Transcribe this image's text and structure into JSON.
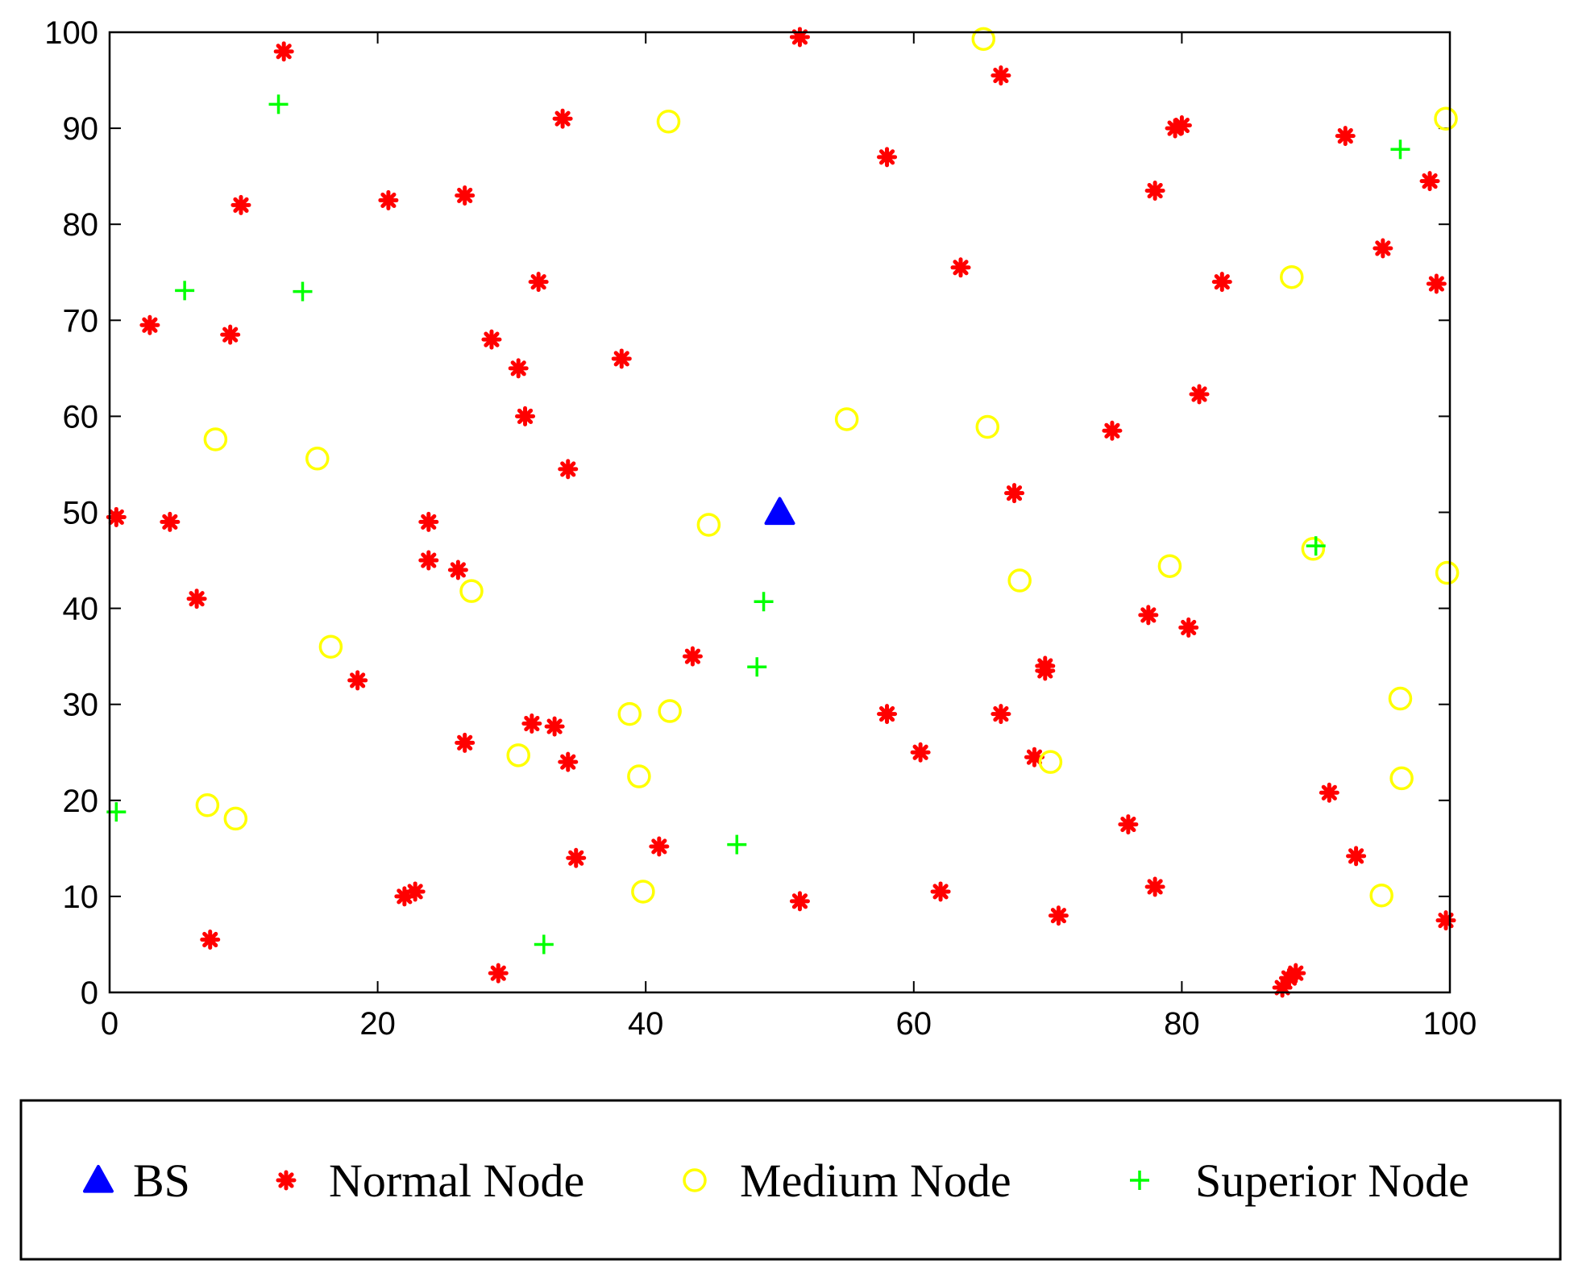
{
  "chart_data": {
    "type": "scatter",
    "title": "",
    "xlabel": "",
    "ylabel": "",
    "xlim": [
      0,
      100
    ],
    "ylim": [
      0,
      100
    ],
    "xticks": [
      0,
      20,
      40,
      60,
      80,
      100
    ],
    "yticks": [
      0,
      10,
      20,
      30,
      40,
      50,
      60,
      70,
      80,
      90,
      100
    ],
    "grid": false,
    "legend_position": "bottom",
    "series": [
      {
        "name": "BS",
        "marker": "triangle",
        "color": "#0000ff",
        "points": [
          [
            50,
            50
          ]
        ]
      },
      {
        "name": "Normal Node",
        "marker": "asterisk",
        "color": "#ff0000",
        "points": [
          [
            0.5,
            49.5
          ],
          [
            3,
            69.5
          ],
          [
            4.5,
            49
          ],
          [
            6.5,
            41
          ],
          [
            7.5,
            5.5
          ],
          [
            9,
            68.5
          ],
          [
            9.8,
            82
          ],
          [
            13,
            98
          ],
          [
            18.5,
            32.5
          ],
          [
            20.8,
            82.5
          ],
          [
            22,
            10
          ],
          [
            22.8,
            10.5
          ],
          [
            23.8,
            49
          ],
          [
            23.8,
            45
          ],
          [
            26,
            44
          ],
          [
            26.5,
            83
          ],
          [
            26.5,
            26
          ],
          [
            28.5,
            68
          ],
          [
            29,
            2
          ],
          [
            30.5,
            65
          ],
          [
            31,
            60
          ],
          [
            31.5,
            28
          ],
          [
            32,
            74
          ],
          [
            33.2,
            27.7
          ],
          [
            33.8,
            91
          ],
          [
            34.2,
            54.5
          ],
          [
            34.2,
            24
          ],
          [
            34.8,
            14
          ],
          [
            38.2,
            66
          ],
          [
            41,
            15.2
          ],
          [
            43.5,
            35
          ],
          [
            51.5,
            99.5
          ],
          [
            51.5,
            9.5
          ],
          [
            58,
            87
          ],
          [
            58,
            29
          ],
          [
            60.5,
            25
          ],
          [
            62,
            10.5
          ],
          [
            63.5,
            75.5
          ],
          [
            66.5,
            95.5
          ],
          [
            66.5,
            29
          ],
          [
            67.5,
            52
          ],
          [
            69,
            24.5
          ],
          [
            69.8,
            34
          ],
          [
            69.8,
            33.5
          ],
          [
            70.8,
            8
          ],
          [
            74.8,
            58.5
          ],
          [
            76,
            17.5
          ],
          [
            77.5,
            39.3
          ],
          [
            78,
            83.5
          ],
          [
            78,
            11
          ],
          [
            79.5,
            90
          ],
          [
            80,
            90.3
          ],
          [
            80.5,
            38
          ],
          [
            81.3,
            62.3
          ],
          [
            83,
            74
          ],
          [
            87.5,
            0.5
          ],
          [
            88,
            1.5
          ],
          [
            88.5,
            2
          ],
          [
            91,
            20.8
          ],
          [
            92.2,
            89.2
          ],
          [
            93,
            14.2
          ],
          [
            95,
            77.5
          ],
          [
            98.5,
            84.5
          ],
          [
            99,
            73.8
          ],
          [
            99.7,
            7.5
          ]
        ]
      },
      {
        "name": "Medium Node",
        "marker": "circle",
        "color": "#ffff00",
        "points": [
          [
            7.3,
            19.5
          ],
          [
            7.9,
            57.6
          ],
          [
            9.4,
            18.1
          ],
          [
            15.5,
            55.6
          ],
          [
            16.5,
            36
          ],
          [
            27,
            41.8
          ],
          [
            30.5,
            24.7
          ],
          [
            38.8,
            29
          ],
          [
            39.5,
            22.5
          ],
          [
            39.8,
            10.5
          ],
          [
            41.7,
            90.7
          ],
          [
            41.8,
            29.3
          ],
          [
            44.7,
            48.7
          ],
          [
            55,
            59.7
          ],
          [
            65.2,
            99.3
          ],
          [
            65.5,
            58.9
          ],
          [
            67.9,
            42.9
          ],
          [
            70.2,
            24
          ],
          [
            79.1,
            44.4
          ],
          [
            88.2,
            74.5
          ],
          [
            89.8,
            46.2
          ],
          [
            94.9,
            10.1
          ],
          [
            96.3,
            30.6
          ],
          [
            96.4,
            22.3
          ],
          [
            99.7,
            91
          ],
          [
            99.8,
            43.7
          ]
        ]
      },
      {
        "name": "Superior Node",
        "marker": "plus",
        "color": "#00ff00",
        "points": [
          [
            0.5,
            18.8
          ],
          [
            5.6,
            73.1
          ],
          [
            12.6,
            92.5
          ],
          [
            14.4,
            73
          ],
          [
            32.4,
            5
          ],
          [
            46.8,
            15.4
          ],
          [
            48.3,
            33.9
          ],
          [
            48.8,
            40.7
          ],
          [
            90,
            46.5
          ],
          [
            96.3,
            87.8
          ]
        ]
      }
    ]
  }
}
